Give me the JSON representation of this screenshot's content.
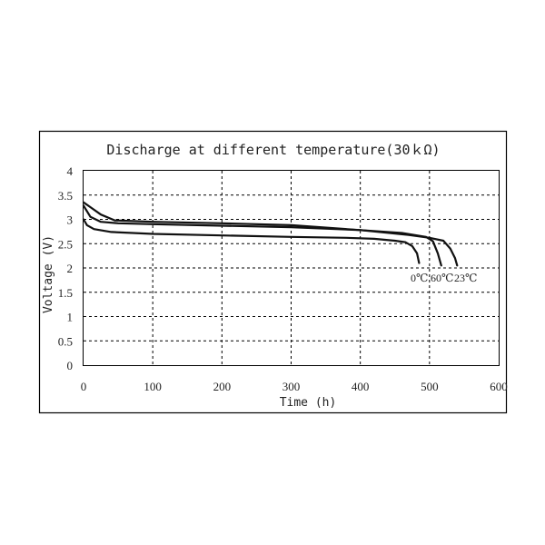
{
  "chart_data": {
    "type": "line",
    "title": "Discharge at different temperature(30ｋΩ)",
    "xlabel": "Time (h)",
    "ylabel": "Voltage (V)",
    "xlim": [
      0,
      600
    ],
    "ylim": [
      0,
      4
    ],
    "grid": true,
    "x_ticks": [
      "0",
      "100",
      "200",
      "300",
      "400",
      "500",
      "600"
    ],
    "y_ticks": [
      "0",
      "0.5",
      "1",
      "1.5",
      "2",
      "2.5",
      "3",
      "3.5",
      "4"
    ],
    "series": [
      {
        "name": "0℃",
        "points": [
          [
            0,
            3.0
          ],
          [
            5,
            2.88
          ],
          [
            15,
            2.8
          ],
          [
            40,
            2.74
          ],
          [
            100,
            2.7
          ],
          [
            200,
            2.67
          ],
          [
            300,
            2.64
          ],
          [
            380,
            2.62
          ],
          [
            420,
            2.6
          ],
          [
            450,
            2.56
          ],
          [
            465,
            2.53
          ],
          [
            475,
            2.45
          ],
          [
            482,
            2.3
          ],
          [
            485,
            2.1
          ]
        ]
      },
      {
        "name": "60℃",
        "points": [
          [
            0,
            3.28
          ],
          [
            10,
            3.05
          ],
          [
            25,
            2.95
          ],
          [
            50,
            2.92
          ],
          [
            100,
            2.9
          ],
          [
            200,
            2.87
          ],
          [
            300,
            2.84
          ],
          [
            400,
            2.78
          ],
          [
            460,
            2.72
          ],
          [
            495,
            2.64
          ],
          [
            505,
            2.55
          ],
          [
            512,
            2.3
          ],
          [
            517,
            2.05
          ]
        ]
      },
      {
        "name": "23℃",
        "points": [
          [
            0,
            3.35
          ],
          [
            10,
            3.25
          ],
          [
            25,
            3.1
          ],
          [
            45,
            2.98
          ],
          [
            100,
            2.95
          ],
          [
            200,
            2.92
          ],
          [
            300,
            2.88
          ],
          [
            400,
            2.78
          ],
          [
            470,
            2.68
          ],
          [
            500,
            2.62
          ],
          [
            520,
            2.56
          ],
          [
            530,
            2.4
          ],
          [
            537,
            2.2
          ],
          [
            540,
            2.05
          ]
        ]
      }
    ]
  },
  "labels": {
    "series_label_0": "0℃",
    "series_label_1": "60℃",
    "series_label_2": "23℃"
  }
}
